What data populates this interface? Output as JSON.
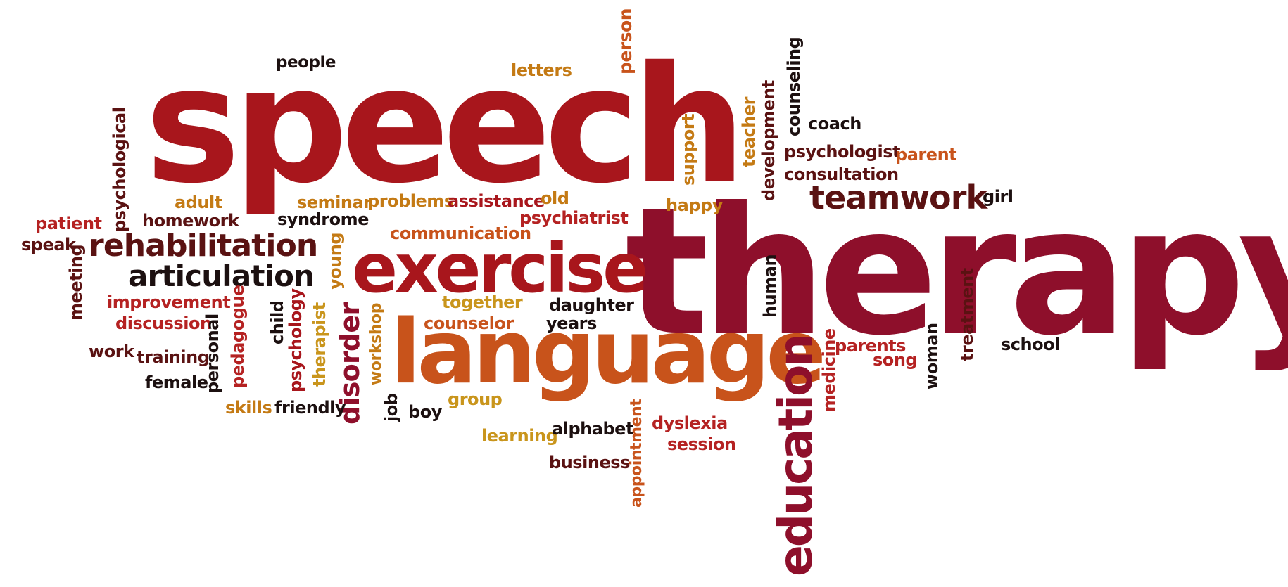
{
  "palette": {
    "crimson": "#a8161c",
    "wine": "#8e0f2b",
    "orange": "#c8531b",
    "gold": "#c9951c",
    "amber": "#c47a14",
    "maroon": "#5a1212",
    "dark": "#1c1010",
    "red": "#b52222"
  },
  "words": [
    {
      "id": "speech",
      "text": "speech",
      "color": "crimson"
    },
    {
      "id": "therapy",
      "text": "therapy",
      "color": "wine"
    },
    {
      "id": "language",
      "text": "language",
      "color": "orange"
    },
    {
      "id": "exercise",
      "text": "exercise",
      "color": "crimson"
    },
    {
      "id": "education",
      "text": "education",
      "color": "wine"
    },
    {
      "id": "teamwork",
      "text": "teamwork",
      "color": "maroon"
    },
    {
      "id": "rehabilitation",
      "text": "rehabilitation",
      "color": "maroon"
    },
    {
      "id": "articulation",
      "text": "articulation",
      "color": "dark"
    },
    {
      "id": "disorder",
      "text": "disorder",
      "color": "wine"
    },
    {
      "id": "people",
      "text": "people",
      "color": "dark"
    },
    {
      "id": "letters",
      "text": "letters",
      "color": "amber"
    },
    {
      "id": "person",
      "text": "person",
      "color": "orange"
    },
    {
      "id": "counseling",
      "text": "counseling",
      "color": "dark"
    },
    {
      "id": "coach",
      "text": "coach",
      "color": "dark"
    },
    {
      "id": "teacher",
      "text": "teacher",
      "color": "amber"
    },
    {
      "id": "development",
      "text": "development",
      "color": "maroon"
    },
    {
      "id": "support",
      "text": "support",
      "color": "amber"
    },
    {
      "id": "psychologist",
      "text": "psychologist",
      "color": "maroon"
    },
    {
      "id": "parent",
      "text": "parent",
      "color": "orange"
    },
    {
      "id": "consultation",
      "text": "consultation",
      "color": "maroon"
    },
    {
      "id": "girl",
      "text": "girl",
      "color": "dark"
    },
    {
      "id": "psychological",
      "text": "psychological",
      "color": "maroon"
    },
    {
      "id": "adult",
      "text": "adult",
      "color": "amber"
    },
    {
      "id": "seminar",
      "text": "seminar",
      "color": "amber"
    },
    {
      "id": "problems",
      "text": "problems",
      "color": "amber"
    },
    {
      "id": "assistance",
      "text": "assistance",
      "color": "crimson"
    },
    {
      "id": "old",
      "text": "old",
      "color": "amber"
    },
    {
      "id": "happy",
      "text": "happy",
      "color": "amber"
    },
    {
      "id": "patient",
      "text": "patient",
      "color": "red"
    },
    {
      "id": "homework",
      "text": "homework",
      "color": "maroon"
    },
    {
      "id": "syndrome",
      "text": "syndrome",
      "color": "dark"
    },
    {
      "id": "psychiatrist",
      "text": "psychiatrist",
      "color": "red"
    },
    {
      "id": "communication",
      "text": "communication",
      "color": "orange"
    },
    {
      "id": "speak",
      "text": "speak",
      "color": "maroon"
    },
    {
      "id": "meeting",
      "text": "meeting",
      "color": "maroon"
    },
    {
      "id": "young",
      "text": "young",
      "color": "amber"
    },
    {
      "id": "improvement",
      "text": "improvement",
      "color": "red"
    },
    {
      "id": "discussion",
      "text": "discussion",
      "color": "red"
    },
    {
      "id": "together",
      "text": "together",
      "color": "gold"
    },
    {
      "id": "daughter",
      "text": "daughter",
      "color": "dark"
    },
    {
      "id": "human",
      "text": "human",
      "color": "dark"
    },
    {
      "id": "treatment",
      "text": "treatment",
      "color": "maroon"
    },
    {
      "id": "counselor",
      "text": "counselor",
      "color": "orange"
    },
    {
      "id": "years",
      "text": "years",
      "color": "dark"
    },
    {
      "id": "pedagogue",
      "text": "pedagogue",
      "color": "red"
    },
    {
      "id": "child",
      "text": "child",
      "color": "dark"
    },
    {
      "id": "psychology",
      "text": "psychology",
      "color": "crimson"
    },
    {
      "id": "therapist",
      "text": "therapist",
      "color": "gold"
    },
    {
      "id": "workshop",
      "text": "workshop",
      "color": "amber"
    },
    {
      "id": "work",
      "text": "work",
      "color": "maroon"
    },
    {
      "id": "training",
      "text": "training",
      "color": "maroon"
    },
    {
      "id": "personal",
      "text": "personal",
      "color": "dark"
    },
    {
      "id": "parents",
      "text": "parents",
      "color": "red"
    },
    {
      "id": "song",
      "text": "song",
      "color": "red"
    },
    {
      "id": "medicine",
      "text": "medicine",
      "color": "red"
    },
    {
      "id": "woman",
      "text": "woman",
      "color": "dark"
    },
    {
      "id": "school",
      "text": "school",
      "color": "dark"
    },
    {
      "id": "female",
      "text": "female",
      "color": "dark"
    },
    {
      "id": "skills",
      "text": "skills",
      "color": "amber"
    },
    {
      "id": "friendly",
      "text": "friendly",
      "color": "dark"
    },
    {
      "id": "job",
      "text": "job",
      "color": "dark"
    },
    {
      "id": "boy",
      "text": "boy",
      "color": "dark"
    },
    {
      "id": "group",
      "text": "group",
      "color": "gold"
    },
    {
      "id": "learning",
      "text": "learning",
      "color": "gold"
    },
    {
      "id": "alphabet",
      "text": "alphabet",
      "color": "dark"
    },
    {
      "id": "appointment",
      "text": "appointment",
      "color": "orange"
    },
    {
      "id": "dyslexia",
      "text": "dyslexia",
      "color": "red"
    },
    {
      "id": "session",
      "text": "session",
      "color": "red"
    },
    {
      "id": "business",
      "text": "business",
      "color": "maroon"
    }
  ]
}
